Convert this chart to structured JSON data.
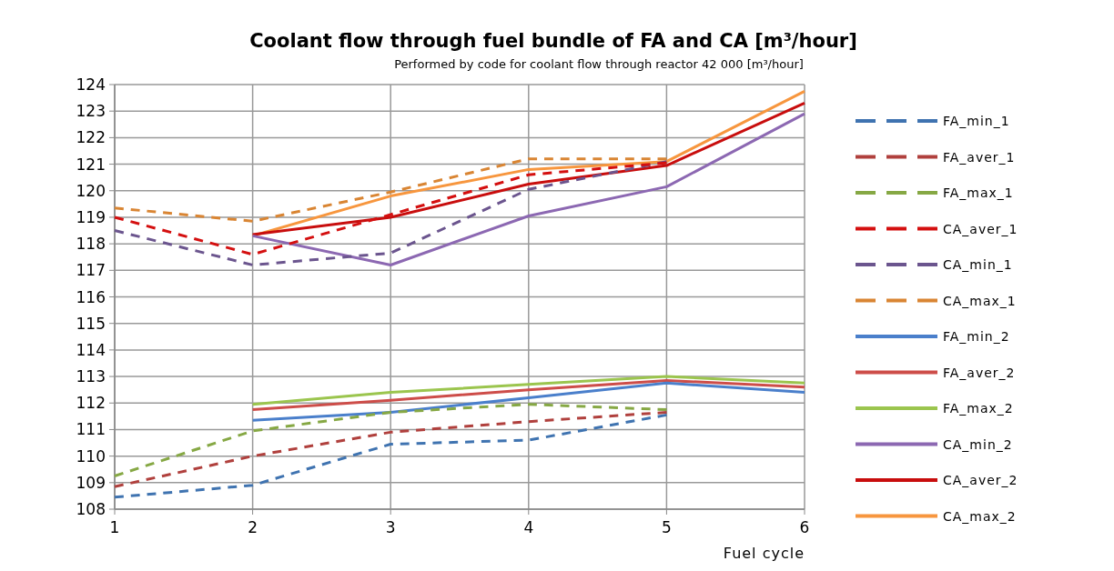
{
  "chart_data": {
    "type": "line",
    "title": "Coolant flow through fuel bundle of FA and CA  [m³/hour]",
    "subtitle": "Performed by code for coolant flow through reactor 42 000 [m³/hour]",
    "xlabel": "Fuel cycle",
    "x": [
      1,
      2,
      3,
      4,
      5,
      6
    ],
    "xlim": [
      1,
      6
    ],
    "xticks": [
      1,
      2,
      3,
      4,
      5,
      6
    ],
    "ylim": [
      108,
      124
    ],
    "yticks": [
      108,
      109,
      110,
      111,
      112,
      113,
      114,
      115,
      116,
      117,
      118,
      119,
      120,
      121,
      122,
      123,
      124
    ],
    "grid": true,
    "legend": "right",
    "marker": "none",
    "series": [
      {
        "name": "FA_min_1",
        "color": "#3f73b0",
        "line_style": "dashed",
        "values": [
          108.45,
          108.9,
          110.45,
          110.6,
          111.55,
          null
        ]
      },
      {
        "name": "FA_aver_1",
        "color": "#b0403d",
        "line_style": "dashed",
        "values": [
          108.85,
          110.0,
          110.9,
          111.3,
          111.65,
          null
        ]
      },
      {
        "name": "FA_max_1",
        "color": "#86a844",
        "line_style": "dashed",
        "values": [
          109.25,
          110.95,
          111.65,
          111.95,
          111.75,
          null
        ]
      },
      {
        "name": "CA_aver_1",
        "color": "#d40f0f",
        "line_style": "dashed",
        "values": [
          119.0,
          117.6,
          119.1,
          120.6,
          121.05,
          null
        ]
      },
      {
        "name": "CA_min_1",
        "color": "#6b558e",
        "line_style": "dashed",
        "values": [
          118.5,
          117.2,
          117.65,
          120.05,
          121.1,
          null
        ]
      },
      {
        "name": "CA_max_1",
        "color": "#d98533",
        "line_style": "dashed",
        "values": [
          119.35,
          118.85,
          119.95,
          121.2,
          121.2,
          null
        ]
      },
      {
        "name": "FA_min_2",
        "color": "#4a7fcb",
        "line_style": "solid",
        "values": [
          null,
          111.35,
          111.65,
          112.2,
          112.75,
          112.4
        ]
      },
      {
        "name": "FA_aver_2",
        "color": "#cd4d49",
        "line_style": "solid",
        "values": [
          null,
          111.75,
          112.1,
          112.5,
          112.85,
          112.6
        ]
      },
      {
        "name": "FA_max_2",
        "color": "#9bc54e",
        "line_style": "solid",
        "values": [
          null,
          111.95,
          112.4,
          112.7,
          113.0,
          112.75
        ]
      },
      {
        "name": "CA_min_2",
        "color": "#8c68b2",
        "line_style": "solid",
        "values": [
          null,
          118.3,
          117.2,
          119.05,
          120.15,
          122.9
        ]
      },
      {
        "name": "CA_aver_2",
        "color": "#c80d0d",
        "line_style": "solid",
        "values": [
          null,
          118.35,
          119.0,
          120.25,
          120.95,
          123.3
        ]
      },
      {
        "name": "CA_max_2",
        "color": "#f7963e",
        "line_style": "solid",
        "values": [
          null,
          118.3,
          119.8,
          120.8,
          121.1,
          123.75
        ]
      }
    ]
  }
}
